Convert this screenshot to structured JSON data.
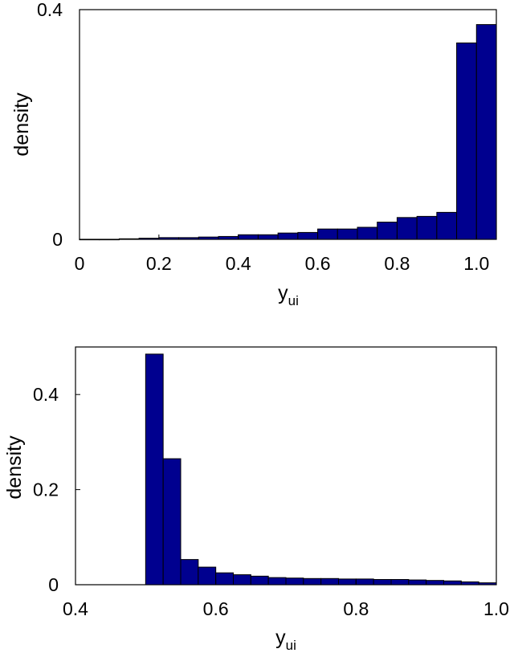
{
  "chart_data": [
    {
      "type": "bar",
      "xlabel": "y",
      "xlabel_subscript": "ui",
      "ylabel": "density",
      "xlim": [
        0,
        1.05
      ],
      "ylim": [
        0,
        0.4
      ],
      "xticks": [
        0,
        0.2,
        0.4,
        0.6,
        0.8,
        1.0
      ],
      "xtick_labels": [
        "0",
        "0.2",
        "0.4",
        "0.6",
        "0.8",
        "1.0"
      ],
      "yticks": [
        0,
        0.4
      ],
      "ytick_labels": [
        "0",
        "0.4"
      ],
      "bar_color": "#00008f",
      "bin_width": 0.05,
      "bins": [
        {
          "x": 0.0,
          "y": 0.0
        },
        {
          "x": 0.05,
          "y": 0.0
        },
        {
          "x": 0.1,
          "y": 0.001
        },
        {
          "x": 0.15,
          "y": 0.002
        },
        {
          "x": 0.2,
          "y": 0.003
        },
        {
          "x": 0.25,
          "y": 0.003
        },
        {
          "x": 0.3,
          "y": 0.004
        },
        {
          "x": 0.35,
          "y": 0.005
        },
        {
          "x": 0.4,
          "y": 0.008
        },
        {
          "x": 0.45,
          "y": 0.008
        },
        {
          "x": 0.5,
          "y": 0.011
        },
        {
          "x": 0.55,
          "y": 0.012
        },
        {
          "x": 0.6,
          "y": 0.018
        },
        {
          "x": 0.65,
          "y": 0.018
        },
        {
          "x": 0.7,
          "y": 0.021
        },
        {
          "x": 0.75,
          "y": 0.03
        },
        {
          "x": 0.8,
          "y": 0.038
        },
        {
          "x": 0.85,
          "y": 0.04
        },
        {
          "x": 0.9,
          "y": 0.047
        },
        {
          "x": 0.95,
          "y": 0.342
        },
        {
          "x": 1.0,
          "y": 0.374
        }
      ]
    },
    {
      "type": "bar",
      "xlabel": "y",
      "xlabel_subscript": "ui",
      "ylabel": "density",
      "xlim": [
        0.4,
        1.0
      ],
      "ylim": [
        0,
        0.5
      ],
      "xticks": [
        0.4,
        0.6,
        0.8,
        1.0
      ],
      "xtick_labels": [
        "0.4",
        "0.6",
        "0.8",
        "1.0"
      ],
      "yticks": [
        0,
        0.2,
        0.4
      ],
      "ytick_labels": [
        "0",
        "0.2",
        "0.4"
      ],
      "bar_color": "#00008f",
      "bin_width": 0.025,
      "bins": [
        {
          "x": 0.5,
          "y": 0.485
        },
        {
          "x": 0.525,
          "y": 0.265
        },
        {
          "x": 0.55,
          "y": 0.053
        },
        {
          "x": 0.575,
          "y": 0.037
        },
        {
          "x": 0.6,
          "y": 0.025
        },
        {
          "x": 0.625,
          "y": 0.021
        },
        {
          "x": 0.65,
          "y": 0.018
        },
        {
          "x": 0.675,
          "y": 0.015
        },
        {
          "x": 0.7,
          "y": 0.014
        },
        {
          "x": 0.725,
          "y": 0.013
        },
        {
          "x": 0.75,
          "y": 0.013
        },
        {
          "x": 0.775,
          "y": 0.012
        },
        {
          "x": 0.8,
          "y": 0.012
        },
        {
          "x": 0.825,
          "y": 0.011
        },
        {
          "x": 0.85,
          "y": 0.011
        },
        {
          "x": 0.875,
          "y": 0.01
        },
        {
          "x": 0.9,
          "y": 0.009
        },
        {
          "x": 0.925,
          "y": 0.008
        },
        {
          "x": 0.95,
          "y": 0.006
        },
        {
          "x": 0.975,
          "y": 0.004
        }
      ]
    }
  ]
}
